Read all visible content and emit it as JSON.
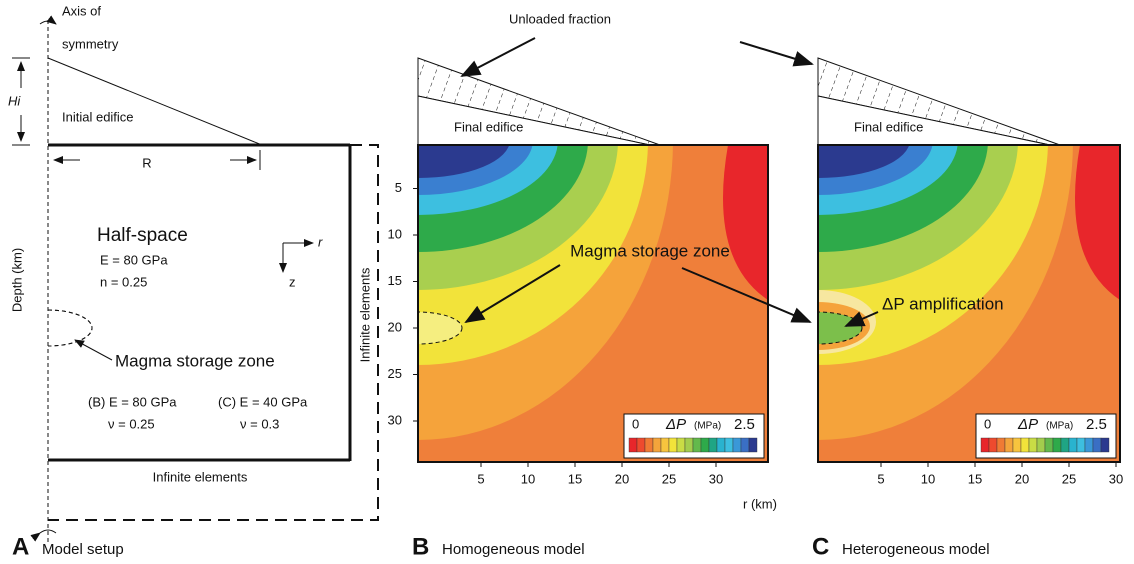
{
  "unloaded_fraction": "Unloaded fraction",
  "r_label": "r (km)",
  "depth_ticks": [
    5,
    10,
    15,
    20,
    25,
    30
  ],
  "panel_a": {
    "axis_line1": "Axis of",
    "axis_line2": "symmetry",
    "hi": "Hi",
    "initial_edifice": "Initial edifice",
    "r": "R",
    "half_space": "Half-space",
    "e": "E = 80 GPa",
    "n": "n = 0.25",
    "r_axis": "r",
    "z_axis": "z",
    "depth_label": "Depth (km)",
    "magma": "Magma storage zone",
    "b_e": "(B) E = 80 GPa",
    "b_nu": "ν = 0.25",
    "c_e": "(C) E = 40 GPa",
    "c_nu": "ν = 0.3",
    "infinite_right": "Infinite elements",
    "infinite_bottom": "Infinite elements",
    "letter": "A",
    "caption": "Model setup"
  },
  "panel_b": {
    "final_edifice": "Final edifice",
    "magma": "Magma storage zone",
    "letter": "B",
    "caption": "Homogeneous model",
    "r_ticks": [
      5,
      10,
      15,
      20,
      25,
      30
    ],
    "colorbar": {
      "min": "0",
      "symbol": "ΔP",
      "unit": "(MPa)",
      "max": "2.5"
    }
  },
  "panel_c": {
    "final_edifice": "Final edifice",
    "amplification": "ΔP amplification",
    "letter": "C",
    "caption": "Heterogeneous model",
    "r_ticks": [
      5,
      10,
      15,
      20,
      25,
      30
    ],
    "colorbar": {
      "min": "0",
      "symbol": "ΔP",
      "unit": "(MPa)",
      "max": "2.5"
    }
  }
}
